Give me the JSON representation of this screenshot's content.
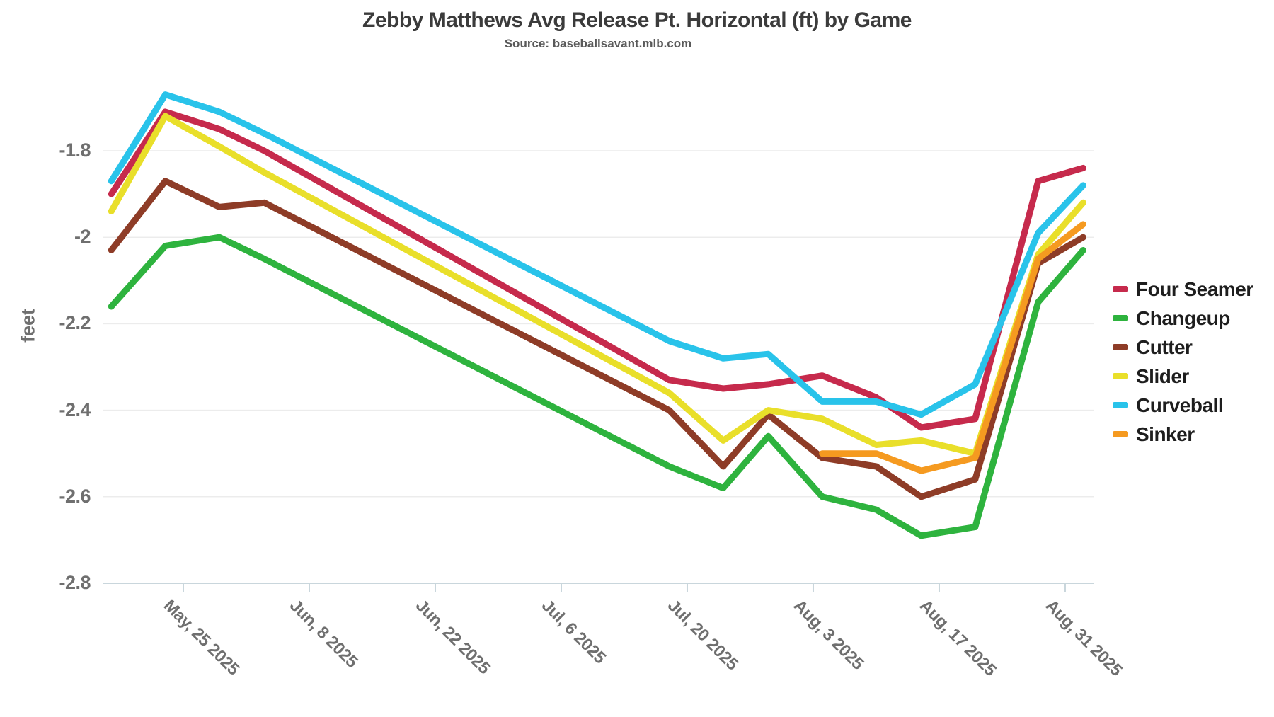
{
  "header": {
    "title": "Zebby Matthews Avg Release Pt. Horizontal (ft) by Game",
    "subtitle": "Source: baseballsavant.mlb.com"
  },
  "y_axis": {
    "label": "feet",
    "ticks": [
      "-1.8",
      "-2",
      "-2.2",
      "-2.4",
      "-2.6",
      "-2.8"
    ],
    "tick_values": [
      -1.8,
      -2.0,
      -2.2,
      -2.4,
      -2.6,
      -2.8
    ]
  },
  "x_axis": {
    "ticks": [
      {
        "label": "May, 25 2025",
        "date": "2025-05-25"
      },
      {
        "label": "Jun, 8 2025",
        "date": "2025-06-08"
      },
      {
        "label": "Jun, 22 2025",
        "date": "2025-06-22"
      },
      {
        "label": "Jul, 6 2025",
        "date": "2025-07-06"
      },
      {
        "label": "Jul, 20 2025",
        "date": "2025-07-20"
      },
      {
        "label": "Aug, 3 2025",
        "date": "2025-08-03"
      },
      {
        "label": "Aug, 17 2025",
        "date": "2025-08-17"
      },
      {
        "label": "Aug, 31 2025",
        "date": "2025-08-31"
      }
    ]
  },
  "chart_data": {
    "type": "line",
    "title": "Zebby Matthews Avg Release Pt. Horizontal (ft) by Game",
    "subtitle": "Source: baseballsavant.mlb.com",
    "xlabel": "",
    "ylabel": "feet",
    "ylim": [
      -2.85,
      -1.62
    ],
    "yticks": [
      -1.8,
      -2.0,
      -2.2,
      -2.4,
      -2.6,
      -2.8
    ],
    "grid": true,
    "legend_position": "right",
    "colors": {
      "four_seamer": "#c62a4c",
      "changeup": "#2eb33e",
      "cutter": "#8e3c27",
      "slider": "#e9df2a",
      "curveball": "#29c3ea",
      "sinker": "#f59a20"
    },
    "series": [
      {
        "name": "Four Seamer",
        "color": "#c62a4c",
        "points": [
          [
            "2025-05-17",
            -1.9
          ],
          [
            "2025-05-23",
            -1.71
          ],
          [
            "2025-05-29",
            -1.75
          ],
          [
            "2025-06-03",
            -1.8
          ],
          [
            "2025-07-18",
            -2.33
          ],
          [
            "2025-07-24",
            -2.35
          ],
          [
            "2025-07-29",
            -2.34
          ],
          [
            "2025-08-04",
            -2.32
          ],
          [
            "2025-08-10",
            -2.37
          ],
          [
            "2025-08-15",
            -2.44
          ],
          [
            "2025-08-21",
            -2.42
          ],
          [
            "2025-08-28",
            -1.87
          ],
          [
            "2025-09-02",
            -1.84
          ]
        ]
      },
      {
        "name": "Changeup",
        "color": "#2eb33e",
        "points": [
          [
            "2025-05-17",
            -2.16
          ],
          [
            "2025-05-23",
            -2.02
          ],
          [
            "2025-05-29",
            -2.0
          ],
          [
            "2025-06-03",
            -2.05
          ],
          [
            "2025-07-18",
            -2.53
          ],
          [
            "2025-07-24",
            -2.58
          ],
          [
            "2025-07-29",
            -2.46
          ],
          [
            "2025-08-04",
            -2.6
          ],
          [
            "2025-08-10",
            -2.63
          ],
          [
            "2025-08-15",
            -2.69
          ],
          [
            "2025-08-21",
            -2.67
          ],
          [
            "2025-08-28",
            -2.15
          ],
          [
            "2025-09-02",
            -2.03
          ]
        ]
      },
      {
        "name": "Cutter",
        "color": "#8e3c27",
        "points": [
          [
            "2025-05-17",
            -2.03
          ],
          [
            "2025-05-23",
            -1.87
          ],
          [
            "2025-05-29",
            -1.93
          ],
          [
            "2025-06-03",
            -1.92
          ],
          [
            "2025-07-18",
            -2.4
          ],
          [
            "2025-07-24",
            -2.53
          ],
          [
            "2025-07-29",
            -2.41
          ],
          [
            "2025-08-04",
            -2.51
          ],
          [
            "2025-08-10",
            -2.53
          ],
          [
            "2025-08-15",
            -2.6
          ],
          [
            "2025-08-21",
            -2.56
          ],
          [
            "2025-08-28",
            -2.06
          ],
          [
            "2025-09-02",
            -2.0
          ]
        ]
      },
      {
        "name": "Slider",
        "color": "#e9df2a",
        "points": [
          [
            "2025-05-17",
            -1.94
          ],
          [
            "2025-05-23",
            -1.72
          ],
          [
            "2025-05-29",
            -1.79
          ],
          [
            "2025-06-03",
            -1.85
          ],
          [
            "2025-07-18",
            -2.36
          ],
          [
            "2025-07-24",
            -2.47
          ],
          [
            "2025-07-29",
            -2.4
          ],
          [
            "2025-08-04",
            -2.42
          ],
          [
            "2025-08-10",
            -2.48
          ],
          [
            "2025-08-15",
            -2.47
          ],
          [
            "2025-08-21",
            -2.5
          ],
          [
            "2025-08-28",
            -2.04
          ],
          [
            "2025-09-02",
            -1.92
          ]
        ]
      },
      {
        "name": "Curveball",
        "color": "#29c3ea",
        "points": [
          [
            "2025-05-17",
            -1.87
          ],
          [
            "2025-05-23",
            -1.67
          ],
          [
            "2025-05-29",
            -1.71
          ],
          [
            "2025-06-03",
            -1.76
          ],
          [
            "2025-07-18",
            -2.24
          ],
          [
            "2025-07-24",
            -2.28
          ],
          [
            "2025-07-29",
            -2.27
          ],
          [
            "2025-08-04",
            -2.38
          ],
          [
            "2025-08-10",
            -2.38
          ],
          [
            "2025-08-15",
            -2.41
          ],
          [
            "2025-08-21",
            -2.34
          ],
          [
            "2025-08-28",
            -1.99
          ],
          [
            "2025-09-02",
            -1.88
          ]
        ]
      },
      {
        "name": "Sinker",
        "color": "#f59a20",
        "points": [
          [
            "2025-08-04",
            -2.5
          ],
          [
            "2025-08-10",
            -2.5
          ],
          [
            "2025-08-15",
            -2.54
          ],
          [
            "2025-08-21",
            -2.51
          ],
          [
            "2025-08-28",
            -2.05
          ],
          [
            "2025-09-02",
            -1.97
          ]
        ]
      }
    ]
  },
  "legend": {
    "items": [
      "Four Seamer",
      "Changeup",
      "Cutter",
      "Slider",
      "Curveball",
      "Sinker"
    ]
  }
}
